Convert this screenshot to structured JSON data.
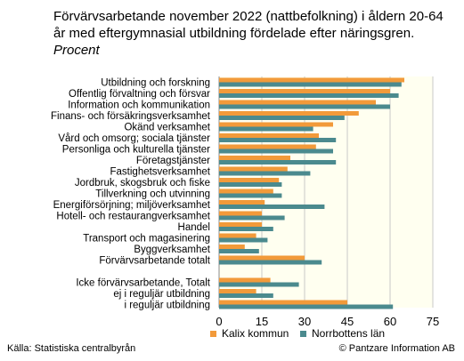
{
  "title": "Förvärvsarbetande november 2022 (nattbefolkning) i åldern 20-64 år med eftergymnasial utbildning fördelade efter näringsgren.",
  "title_unit": "Procent",
  "source": "Källa: Statistiska centralbyrån",
  "copyright": "© Pantzare Information AB",
  "colors": {
    "kalix": "#f29a3a",
    "norrbotten": "#4b8a8e",
    "plot_bg": "#fffff0",
    "grid": "#c8c8c8"
  },
  "chart_data": {
    "type": "bar",
    "orientation": "horizontal",
    "title": "Förvärvsarbetande november 2022 (nattbefolkning) i åldern 20-64 år med eftergymnasial utbildning fördelade efter näringsgren. Procent",
    "xlim": [
      0,
      75
    ],
    "xticks": [
      0,
      15,
      30,
      45,
      60,
      75
    ],
    "grid": true,
    "legend": "bottom",
    "categories": [
      "Utbildning och forskning",
      "Offentlig förvaltning och försvar",
      "Information och kommunikation",
      "Finans- och försäkringsverksamhet",
      "Okänd verksamhet",
      "Vård och omsorg; sociala tjänster",
      "Personliga och kulturella tjänster",
      "Företagstjänster",
      "Fastighetsverksamhet",
      "Jordbruk, skogsbruk och fiske",
      "Tillverkning och utvinning",
      "Energiförsörjning; miljöverksamhet",
      "Hotell- och restaurangverksamhet",
      "Handel",
      "Transport och magasinering",
      "Byggverksamhet",
      "Förvärvsarbetande totalt",
      "",
      "Icke förvärvsarbetande, Totalt",
      "ej i reguljär utbildning",
      "i reguljär utbildning"
    ],
    "series": [
      {
        "name": "Kalix kommun",
        "values": [
          65,
          60,
          55,
          49,
          40,
          35,
          34,
          25,
          24,
          21,
          19,
          16,
          15,
          15,
          13,
          9,
          30,
          null,
          18,
          13,
          45
        ]
      },
      {
        "name": "Norrbottens län",
        "values": [
          64,
          63,
          60,
          44,
          33,
          41,
          40,
          41,
          32,
          22,
          22,
          37,
          23,
          19,
          17,
          14,
          36,
          null,
          28,
          19,
          61
        ]
      }
    ]
  }
}
